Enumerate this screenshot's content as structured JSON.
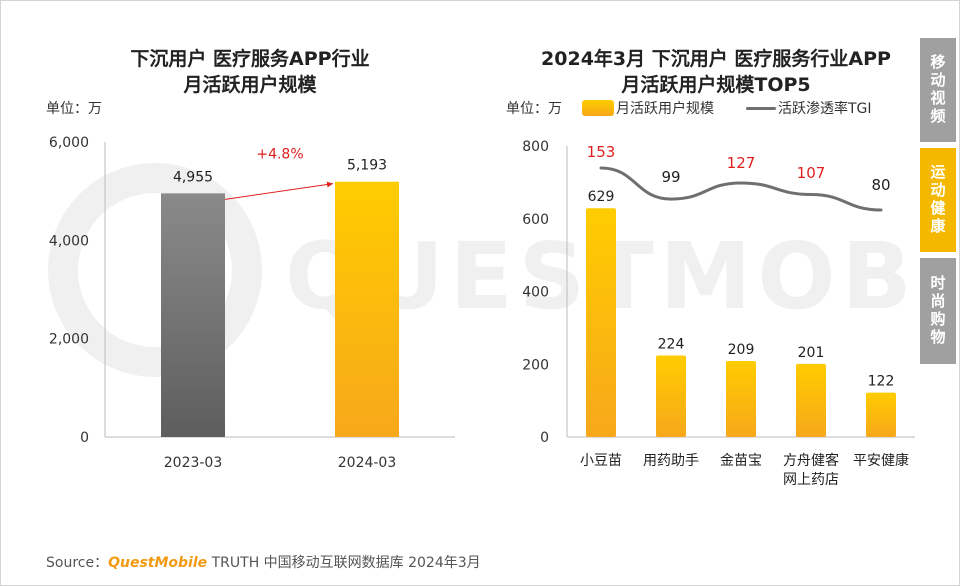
{
  "left_chart": {
    "title_line1": "下沉用户 医疗服务APP行业",
    "title_line2": "月活跃用户规模",
    "unit": "单位：万"
  },
  "right_chart": {
    "title_line1": "2024年3月 下沉用户 医疗服务行业APP",
    "title_line2": "月活跃用户规模TOP5",
    "unit": "单位：万",
    "legend_bar": "月活跃用户规模",
    "legend_line": "活跃渗透率TGI"
  },
  "side_tabs": [
    {
      "label": "移动视频",
      "active": false
    },
    {
      "label": "运动健康",
      "active": true
    },
    {
      "label": "时尚购物",
      "active": false
    }
  ],
  "source": {
    "prefix": "Source：",
    "brand": "QuestMobile",
    "suffix": "TRUTH 中国移动互联网数据库 2024年3月"
  },
  "watermark": "QUESTMOBILE",
  "colors": {
    "bar_gray_top": "#8a8a8a",
    "bar_gray_bottom": "#5e5e5e",
    "bar_gold_top": "#ffcc00",
    "bar_gold_bottom": "#f7a81b",
    "tab_active": "#f5b800",
    "tab_inactive": "#a0a0a0",
    "tgi_red": "#e02020",
    "tgi_line": "#6f6f6f"
  },
  "chart_data": [
    {
      "type": "bar",
      "title": "下沉用户 医疗服务APP行业 月活跃用户规模",
      "ylabel": "单位：万",
      "categories": [
        "2023-03",
        "2024-03"
      ],
      "values": [
        4955,
        5193
      ],
      "value_labels": [
        "4,955",
        "5,193"
      ],
      "ylim": [
        0,
        6000
      ],
      "yticks": [
        0,
        2000,
        4000,
        6000
      ],
      "ytick_labels": [
        "0",
        "2,000",
        "4,000",
        "6,000"
      ],
      "annotation": "+4.8%"
    },
    {
      "type": "bar+line",
      "title": "2024年3月 下沉用户 医疗服务行业APP 月活跃用户规模TOP5",
      "ylabel": "单位：万",
      "categories": [
        "小豆苗",
        "用药助手",
        "金苗宝",
        "方舟健客\n网上药店",
        "平安健康"
      ],
      "series": [
        {
          "name": "月活跃用户规模",
          "type": "bar",
          "values": [
            629,
            224,
            209,
            201,
            122
          ]
        },
        {
          "name": "活跃渗透率TGI",
          "type": "line",
          "values": [
            153,
            99,
            127,
            107,
            80
          ],
          "highlight": [
            true,
            false,
            true,
            true,
            false
          ]
        }
      ],
      "ylim": [
        0,
        800
      ],
      "yticks": [
        0,
        200,
        400,
        600,
        800
      ]
    }
  ]
}
